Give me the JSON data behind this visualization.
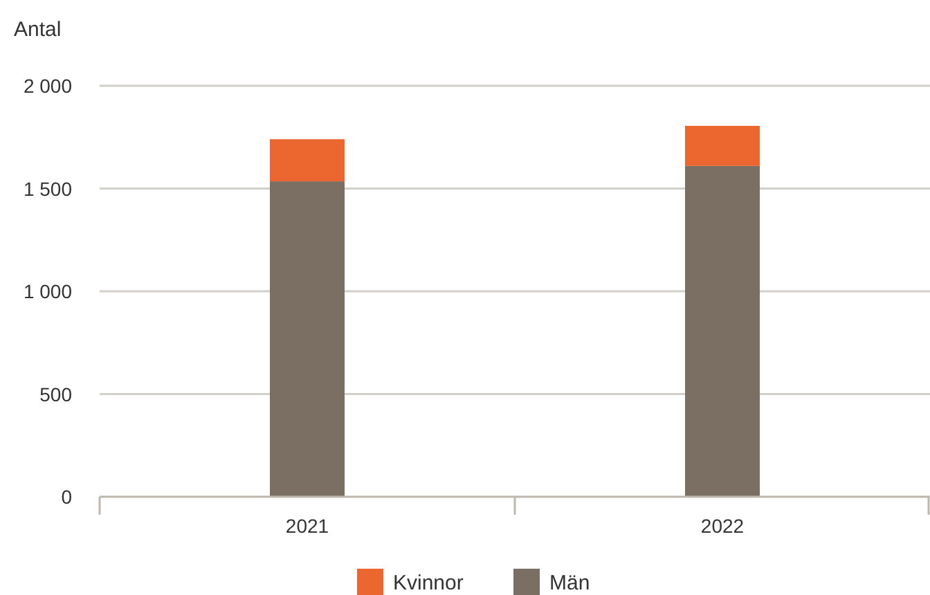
{
  "chart_data": {
    "type": "bar",
    "ylabel": "Antal",
    "categories": [
      "2021",
      "2022"
    ],
    "stacked": true,
    "series": [
      {
        "name": "Män",
        "color": "#7b6f64",
        "values": [
          1535,
          1610
        ]
      },
      {
        "name": "Kvinnor",
        "color": "#ec6730",
        "values": [
          205,
          195
        ]
      }
    ],
    "ylim": [
      0,
      2000
    ],
    "yticks": [
      {
        "value": 0,
        "label": "0"
      },
      {
        "value": 500,
        "label": "500"
      },
      {
        "value": 1000,
        "label": "1 000"
      },
      {
        "value": 1500,
        "label": "1 500"
      },
      {
        "value": 2000,
        "label": "2 000"
      }
    ],
    "grid": "y",
    "legend": "bottom"
  }
}
